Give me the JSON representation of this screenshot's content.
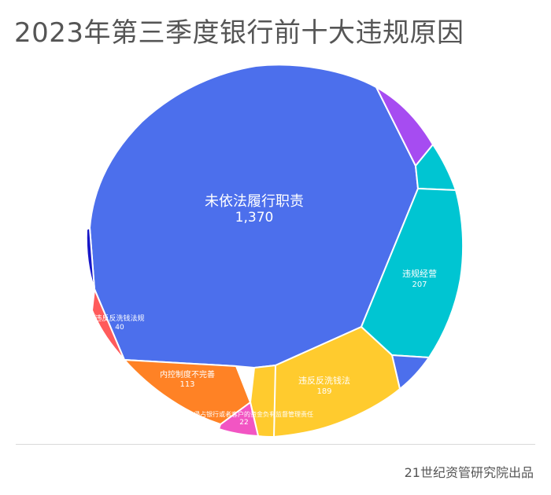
{
  "title": "2023年第三季度银行前十大违规原因",
  "source": "21世纪资管研究院出品",
  "chart_data": {
    "type": "treemap",
    "title": "2023年第三季度银行前十大违规原因",
    "items": [
      {
        "name": "未依法履行职责",
        "value": 1370,
        "value_label": "1,370",
        "color": "#4c6fec"
      },
      {
        "name": "",
        "value": 60,
        "value_label": "",
        "color": "#a64cf1"
      },
      {
        "name": "",
        "value": 55,
        "value_label": "",
        "color": "#00c5d2"
      },
      {
        "name": "违规经营",
        "value": 207,
        "value_label": "207",
        "color": "#00c5d2"
      },
      {
        "name": "",
        "value": 30,
        "value_label": "",
        "color": "#4c6fec"
      },
      {
        "name": "违反反洗钱法",
        "value": 189,
        "value_label": "189",
        "color": "#ffcb2e"
      },
      {
        "name": "",
        "value": 12,
        "value_label": "",
        "color": "#ffcb2e"
      },
      {
        "name": "挪用、侵占银行或者客户的资金负有监督管理责任",
        "value": 22,
        "value_label": "22",
        "color": "#f255c3"
      },
      {
        "name": "内控制度不完善",
        "value": 113,
        "value_label": "113",
        "color": "#ff8225"
      },
      {
        "name": "违反反洗钱法规",
        "value": 40,
        "value_label": "40",
        "color": "#ff5b5b"
      },
      {
        "name": "",
        "value": 25,
        "value_label": "",
        "color": "#1818c8"
      }
    ]
  }
}
